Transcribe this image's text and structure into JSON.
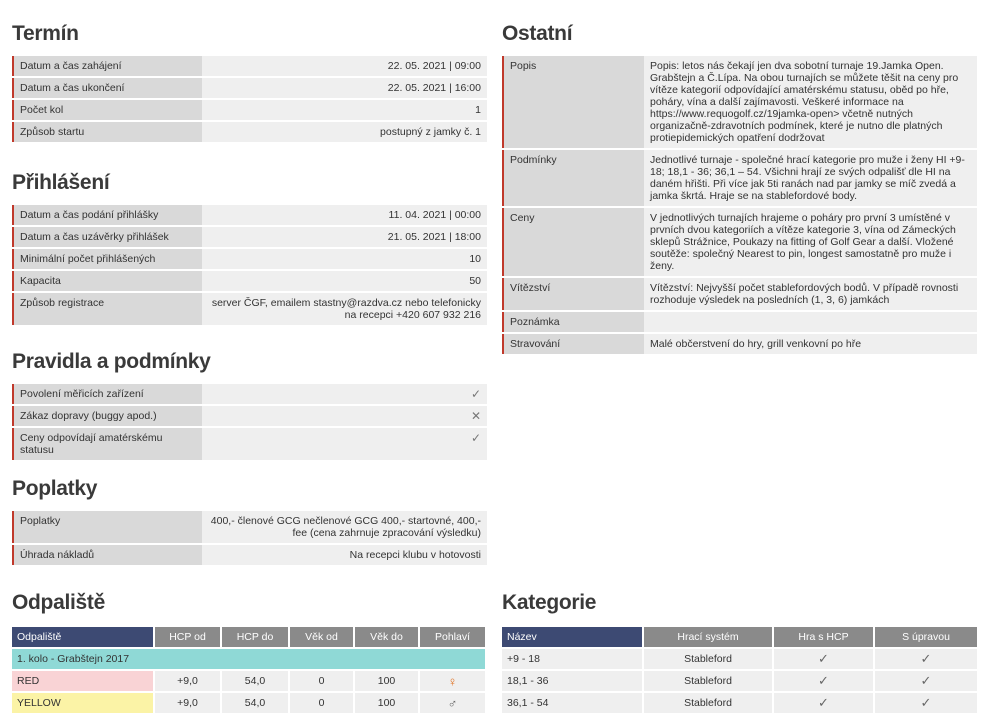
{
  "left": [
    {
      "title": "Termín",
      "rows": [
        [
          "Datum a čas zahájení",
          "22. 05. 2021 | 09:00"
        ],
        [
          "Datum a čas ukončení",
          "22. 05. 2021 | 16:00"
        ],
        [
          "Počet kol",
          "1"
        ],
        [
          "Způsob startu",
          "postupný z jamky č. 1"
        ]
      ]
    },
    {
      "title": "Přihlášení",
      "rows": [
        [
          "Datum a čas podání přihlášky",
          "11. 04. 2021 | 00:00"
        ],
        [
          "Datum a čas uzávěrky přihlášek",
          "21. 05. 2021 | 18:00"
        ],
        [
          "Minimální počet přihlášených",
          "10"
        ],
        [
          "Kapacita",
          "50"
        ],
        [
          "Způsob registrace",
          "server ČGF, emailem stastny@razdva.cz nebo telefonicky na recepci +420 607 932 216"
        ]
      ]
    },
    {
      "title": "Pravidla a podmínky",
      "rows": [
        [
          "Povolení měřicích zařízení",
          "✓"
        ],
        [
          "Zákaz dopravy (buggy apod.)",
          "✕"
        ],
        [
          "Ceny odpovídají amatérskému statusu",
          "✓"
        ]
      ]
    },
    {
      "title": "Poplatky",
      "rows": [
        [
          "Poplatky",
          "400,- členové GCG nečlenové GCG 400,- startovné, 400,-fee (cena zahrnuje zpracování výsledku)"
        ],
        [
          "Úhrada nákladů",
          "Na recepci klubu v hotovosti"
        ]
      ]
    }
  ],
  "right": [
    {
      "title": "Ostatní",
      "rows": [
        [
          "Popis",
          "Popis: letos nás čekají jen dva sobotní turnaje 19.Jamka Open. Grabštejn a Č.Lípa. Na obou turnajích se můžete těšit na ceny pro vítěze kategorií odpovídající amatérskému statusu, oběd po hře, poháry, vína a další zajímavosti. Veškeré informace na https://www.requogolf.cz/19jamka-open> včetně nutných organizačně-zdravotních podmínek, které je nutno dle platných protiepidemických opatření dodržovat"
        ],
        [
          "Podmínky",
          "Jednotlivé turnaje - společné hrací kategorie pro muže i ženy HI +9-18; 18,1 - 36; 36,1 – 54. Všichni hrají ze svých odpališť dle HI na daném hřišti. Při více jak 5ti ranách nad par jamky se míč zvedá a jamka škrtá. Hraje se na stablefordové body."
        ],
        [
          "Ceny",
          "V jednotlivých turnajích hrajeme o poháry pro první 3 umístěné v prvních dvou kategoriích a vítěze kategorie 3, vína od Zámeckých sklepů Strážnice, Poukazy na fitting of Golf Gear a další. Vložené soutěže: společný Nearest to pin, longest samostatně pro muže i ženy."
        ],
        [
          "Vítězství",
          "Vítězství: Nejvyšší počet stablefordových bodů. V případě rovnosti rozhoduje výsledek na posledních (1, 3, 6) jamkách"
        ],
        [
          "Poznámka"
        ],
        [
          "Stravování",
          "Malé občerstvení do hry, grill venkovní po hře"
        ]
      ]
    }
  ],
  "odpaliste": {
    "title": "Odpaliště",
    "headers": [
      "Odpaliště",
      "HCP od",
      "HCP do",
      "Věk od",
      "Věk do",
      "Pohlaví"
    ],
    "group": "1. kolo - Grabštejn 2017",
    "rows": [
      {
        "color": "#f9d3d5",
        "cells": [
          "RED",
          "+9,0",
          "54,0",
          "0",
          "100",
          "♀"
        ]
      },
      {
        "color": "#fbf3a6",
        "cells": [
          "YELLOW",
          "+9,0",
          "54,0",
          "0",
          "100",
          "♂"
        ]
      }
    ]
  },
  "kategorie": {
    "title": "Kategorie",
    "headers": [
      "Název",
      "Hrací systém",
      "Hra s HCP",
      "S úpravou"
    ],
    "rows": [
      {
        "cells": [
          "+9 - 18",
          "Stableford",
          "✓",
          "✓"
        ]
      },
      {
        "cells": [
          "18,1 - 36",
          "Stableford",
          "✓",
          "✓"
        ]
      },
      {
        "cells": [
          "36,1 - 54",
          "Stableford",
          "✓",
          "✓"
        ]
      }
    ]
  }
}
